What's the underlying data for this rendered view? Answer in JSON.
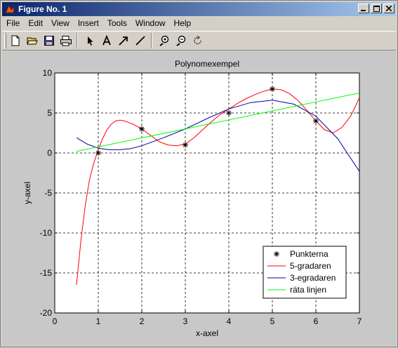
{
  "window": {
    "title": "Figure No. 1"
  },
  "menu": [
    "File",
    "Edit",
    "View",
    "Insert",
    "Tools",
    "Window",
    "Help"
  ],
  "toolbar": [
    "new-file-icon",
    "open-folder-icon",
    "save-icon",
    "print-icon",
    "select-arrow-icon",
    "insert-text-icon",
    "insert-arrow-icon",
    "insert-line-icon",
    "zoom-in-icon",
    "zoom-out-icon",
    "rotate-icon"
  ],
  "chart_data": {
    "type": "line",
    "title": "Polynomexempel",
    "xlabel": "x-axel",
    "ylabel": "y-axel",
    "xlim": [
      0,
      7
    ],
    "ylim": [
      -20,
      10
    ],
    "xticks": [
      0,
      1,
      2,
      3,
      4,
      5,
      6,
      7
    ],
    "yticks": [
      -20,
      -15,
      -10,
      -5,
      0,
      5,
      10
    ],
    "grid": true,
    "legend_position": "bottom-right",
    "points": {
      "name": "Punkterna",
      "x": [
        1,
        2,
        3,
        4,
        5,
        6
      ],
      "y": [
        0,
        3,
        1,
        5,
        8,
        4
      ]
    },
    "series": [
      {
        "name": "5-gradaren",
        "color": "#ff0000",
        "x": [
          0.5,
          0.6,
          0.7,
          0.8,
          0.9,
          1.0,
          1.1,
          1.2,
          1.3,
          1.4,
          1.5,
          1.6,
          1.7,
          1.8,
          1.9,
          2.0,
          2.2,
          2.4,
          2.6,
          2.8,
          3.0,
          3.2,
          3.4,
          3.6,
          3.8,
          4.0,
          4.2,
          4.4,
          4.6,
          4.8,
          5.0,
          5.2,
          5.4,
          5.6,
          5.8,
          6.0,
          6.2,
          6.4,
          6.6,
          6.8,
          7.0
        ],
        "y": [
          -16.5,
          -11.0,
          -6.6,
          -3.3,
          -1.2,
          0.4,
          1.8,
          2.9,
          3.6,
          4.0,
          4.1,
          4.0,
          3.8,
          3.6,
          3.3,
          3.0,
          2.2,
          1.4,
          1.0,
          0.9,
          1.1,
          1.9,
          2.9,
          3.9,
          4.8,
          5.5,
          6.2,
          6.8,
          7.3,
          7.7,
          8.0,
          7.9,
          7.4,
          6.5,
          5.3,
          4.0,
          2.9,
          2.5,
          3.2,
          4.6,
          6.9
        ]
      },
      {
        "name": "3-egradaren",
        "color": "#0000aa",
        "x": [
          0.5,
          0.75,
          1.0,
          1.25,
          1.5,
          1.75,
          2.0,
          2.5,
          3.0,
          3.5,
          4.0,
          4.5,
          5.0,
          5.5,
          6.0,
          6.5,
          7.0
        ],
        "y": [
          1.9,
          1.1,
          0.6,
          0.4,
          0.4,
          0.55,
          0.9,
          1.9,
          3.0,
          4.3,
          5.5,
          6.3,
          6.6,
          6.1,
          4.6,
          1.8,
          -2.3
        ]
      },
      {
        "name": "räta linjen",
        "color": "#00ff00",
        "x": [
          0.5,
          7.0
        ],
        "y": [
          0.2,
          7.5
        ]
      }
    ]
  }
}
